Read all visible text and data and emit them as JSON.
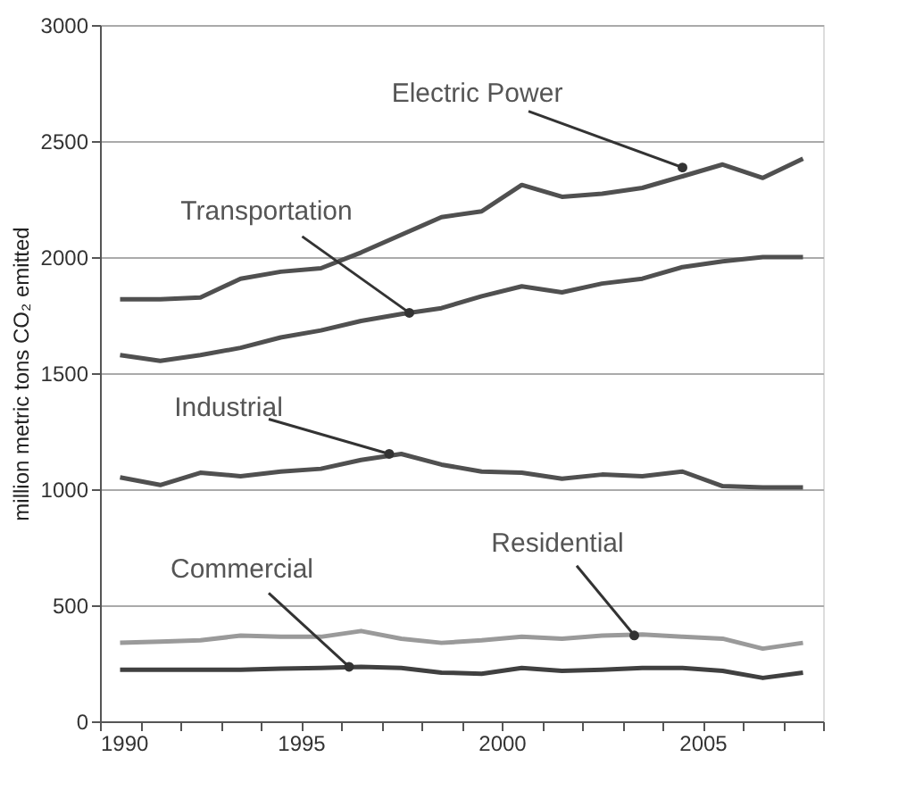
{
  "chart_data": {
    "type": "line",
    "ylabel": "million metric tons CO₂ emitted",
    "x": [
      1990.5,
      1991.5,
      1992.5,
      1993.5,
      1994.5,
      1995.5,
      1996.5,
      1997.5,
      1998.5,
      1999.5,
      2000.5,
      2001.5,
      2002.5,
      2003.5,
      2004.5,
      2005.5,
      2006.5,
      2007.5
    ],
    "series": [
      {
        "color": "#505050",
        "values": [
          1818,
          1818,
          1826,
          1907,
          1937,
          1952,
          2020,
          2096,
          2172,
          2197,
          2311,
          2260,
          2273,
          2298,
          2348,
          2399,
          2341,
          2424
        ]
      },
      {
        "color": "#505050",
        "values": [
          1578,
          1553,
          1578,
          1609,
          1654,
          1684,
          1725,
          1755,
          1780,
          1831,
          1874,
          1848,
          1886,
          1907,
          1957,
          1982,
          2000,
          2000
        ]
      },
      {
        "color": "#505050",
        "values": [
          1051,
          1018,
          1071,
          1056,
          1076,
          1088,
          1126,
          1152,
          1106,
          1076,
          1071,
          1045,
          1063,
          1056,
          1076,
          1013,
          1008,
          1008
        ]
      },
      {
        "color": "#9a9a9a",
        "values": [
          338,
          343,
          349,
          369,
          364,
          364,
          389,
          356,
          338,
          349,
          364,
          356,
          369,
          374,
          364,
          356,
          313,
          338
        ]
      },
      {
        "color": "#404040",
        "values": [
          222,
          222,
          222,
          222,
          227,
          230,
          235,
          230,
          210,
          205,
          230,
          217,
          222,
          230,
          230,
          217,
          187,
          210
        ]
      }
    ],
    "annotations": [
      {
        "text": "Electric Power",
        "x": 2004.5,
        "y": 2386
      },
      {
        "text": "Transportation",
        "x": 1997.7,
        "y": 1760
      },
      {
        "text": "Industrial",
        "x": 1997.2,
        "y": 1152
      },
      {
        "text": "Commercial",
        "x": 1996.2,
        "y": 235
      },
      {
        "text": "Residential",
        "x": 2003.3,
        "y": 370
      }
    ],
    "xlim": [
      1990,
      2008
    ],
    "xticks": [
      1990,
      {
        "value": 1991,
        "label": null
      },
      {
        "value": 1992,
        "label": null
      },
      {
        "value": 1993,
        "label": null
      },
      {
        "value": 1994,
        "label": null
      },
      1995,
      {
        "value": 1996,
        "label": null
      },
      {
        "value": 1997,
        "label": null
      },
      {
        "value": 1998,
        "label": null
      },
      {
        "value": 1999,
        "label": null
      },
      2000,
      {
        "value": 2001,
        "label": null
      },
      {
        "value": 2002,
        "label": null
      },
      {
        "value": 2003,
        "label": null
      },
      {
        "value": 2004,
        "label": null
      },
      2005,
      {
        "value": 2006,
        "label": null
      },
      {
        "value": 2007,
        "label": null
      },
      {
        "value": 2008,
        "label": null
      }
    ],
    "ylim": [
      0,
      3000
    ],
    "yticks": [
      0,
      500,
      1000,
      1500,
      2000,
      2500,
      3000
    ],
    "grid": "y",
    "legend": false,
    "marker": "none",
    "line_style": "solid"
  }
}
